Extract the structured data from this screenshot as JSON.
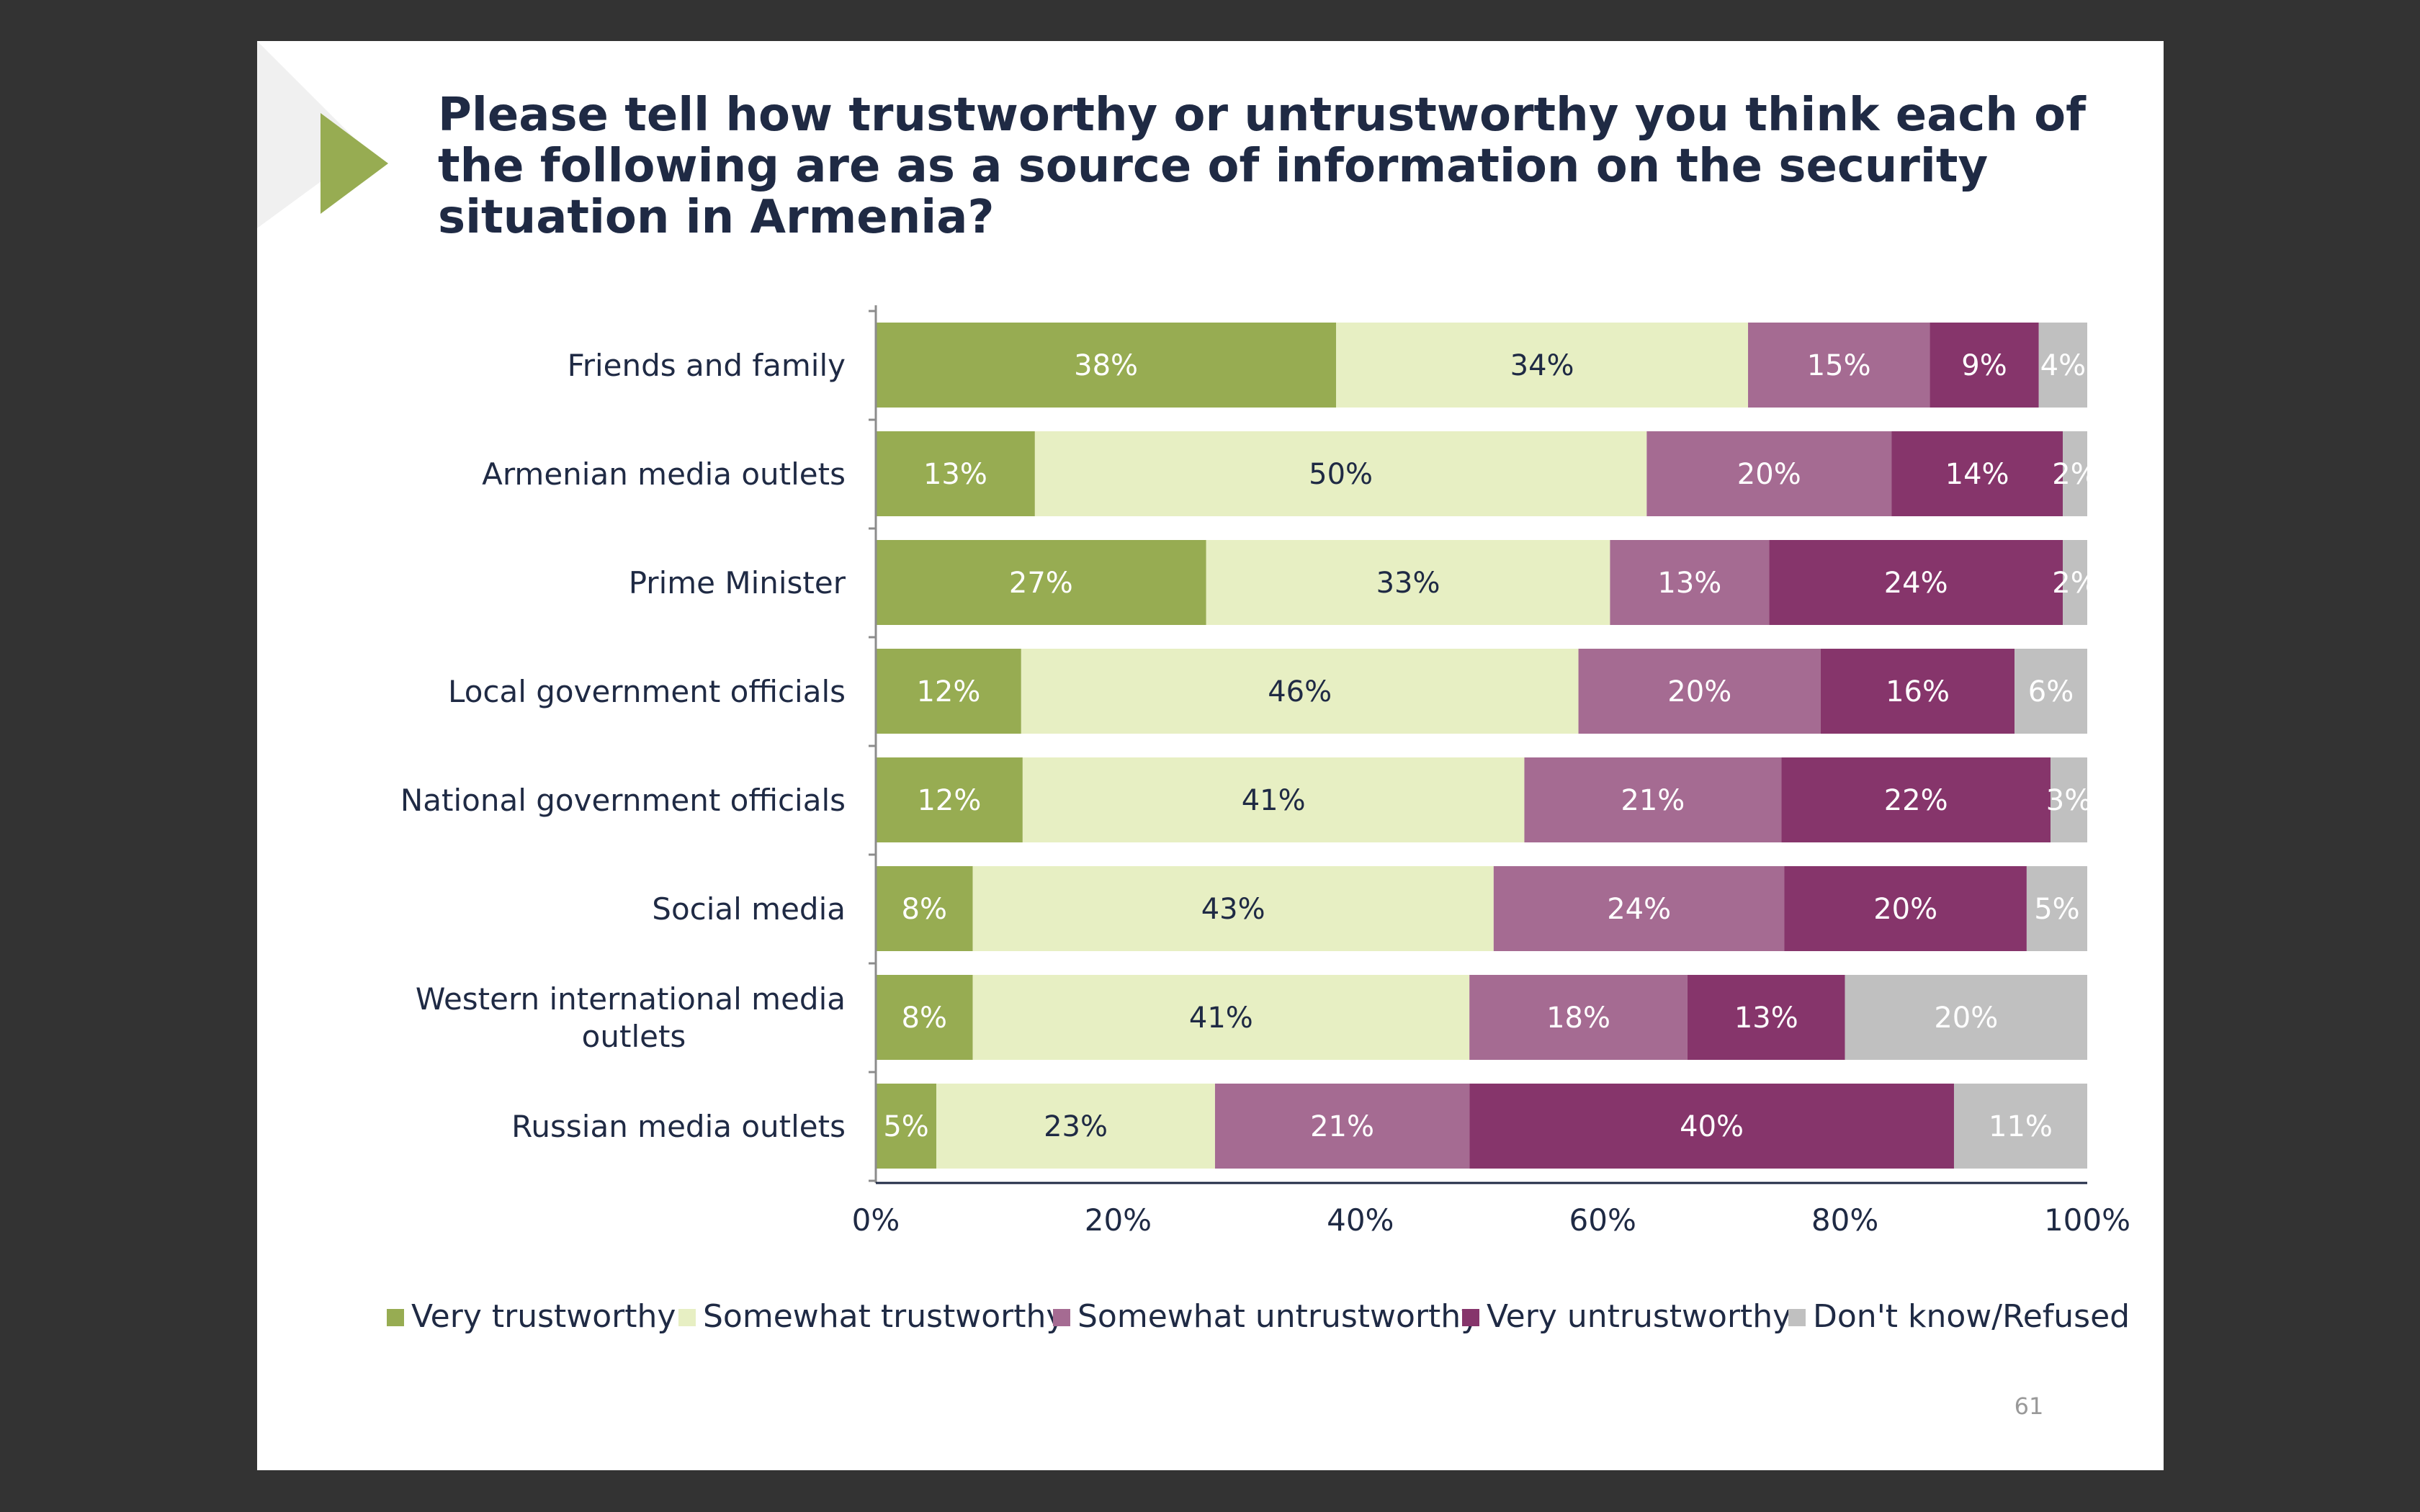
{
  "slide": {
    "title": "Please tell how trustworthy or untrustworthy you think each of the following are as a source of information on the security situation in Armenia?",
    "page_number": "61",
    "accent_color": "#97ac52"
  },
  "chart_data": {
    "type": "bar",
    "orientation": "horizontal",
    "stacked": true,
    "title": "",
    "xlabel": "",
    "ylabel": "",
    "xlim": [
      0,
      100
    ],
    "x_ticks": [
      "0%",
      "20%",
      "40%",
      "60%",
      "80%",
      "100%"
    ],
    "grid": false,
    "legend_position": "bottom",
    "categories": [
      [
        "Friends and family"
      ],
      [
        "Armenian media outlets"
      ],
      [
        "Prime Minister"
      ],
      [
        "Local government officials"
      ],
      [
        "National government officials"
      ],
      [
        "Social media"
      ],
      [
        "Western international media",
        "outlets"
      ],
      [
        "Russian media outlets"
      ]
    ],
    "series": [
      {
        "name": "Very trustworthy",
        "color": "#97ac52",
        "label_color": "#ffffff",
        "values": [
          38,
          13,
          27,
          12,
          12,
          8,
          8,
          5
        ]
      },
      {
        "name": "Somewhat trustworthy",
        "color": "#e7efc3",
        "label_color": "#1f2a44",
        "values": [
          34,
          50,
          33,
          46,
          41,
          43,
          41,
          23
        ]
      },
      {
        "name": "Somewhat untrustworthy",
        "color": "#a56b92",
        "label_color": "#ffffff",
        "values": [
          15,
          20,
          13,
          20,
          21,
          24,
          18,
          21
        ]
      },
      {
        "name": "Very untrustworthy",
        "color": "#86356b",
        "label_color": "#ffffff",
        "values": [
          9,
          14,
          24,
          16,
          22,
          20,
          13,
          40
        ]
      },
      {
        "name": "Don't know/Refused",
        "color": "#c0c0c0",
        "label_color": "#ffffff",
        "values": [
          4,
          2,
          2,
          6,
          3,
          5,
          20,
          11
        ]
      }
    ]
  }
}
